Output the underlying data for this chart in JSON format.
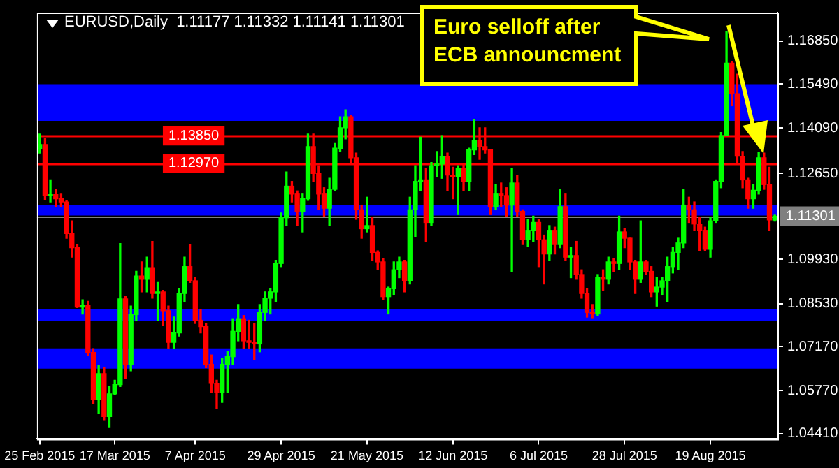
{
  "chart_data": {
    "type": "candlestick",
    "title": "EURUSD,Daily  1.11177 1.11332 1.11141 1.11301",
    "annotations": [
      "Euro selloff after ECB announcment"
    ],
    "categories": [
      "25 Feb 2015",
      null,
      null,
      null,
      null,
      null,
      null,
      null,
      null,
      null,
      null,
      null,
      null,
      null,
      "17 Mar 2015",
      null,
      null,
      null,
      null,
      null,
      null,
      null,
      null,
      null,
      null,
      null,
      null,
      null,
      null,
      "7 Apr 2015",
      null,
      null,
      null,
      null,
      null,
      null,
      null,
      null,
      null,
      null,
      null,
      null,
      null,
      null,
      null,
      "29 Apr 2015",
      null,
      null,
      null,
      null,
      null,
      null,
      null,
      null,
      null,
      null,
      null,
      null,
      null,
      null,
      null,
      "21 May 2015",
      null,
      null,
      null,
      null,
      null,
      null,
      null,
      null,
      null,
      null,
      null,
      null,
      null,
      null,
      null,
      "12 Jun 2015",
      null,
      null,
      null,
      null,
      null,
      null,
      null,
      null,
      null,
      null,
      null,
      null,
      null,
      null,
      null,
      "6 Jul 2015",
      null,
      null,
      null,
      null,
      null,
      null,
      null,
      null,
      null,
      null,
      null,
      null,
      null,
      null,
      null,
      "28 Jul 2015",
      null,
      null,
      null,
      null,
      null,
      null,
      null,
      null,
      null,
      null,
      null,
      null,
      null,
      null,
      null,
      "19 Aug 2015",
      null,
      null,
      null,
      null,
      null,
      null,
      null,
      null,
      null,
      null,
      null,
      null
    ],
    "ohlc": [
      [
        1.1345,
        1.139,
        1.133,
        1.1357
      ],
      [
        1.1357,
        1.1376,
        1.1183,
        1.1195
      ],
      [
        1.1195,
        1.1245,
        1.1175,
        1.1198
      ],
      [
        1.1198,
        1.1215,
        1.116,
        1.1185
      ],
      [
        1.1185,
        1.12,
        1.116,
        1.1175
      ],
      [
        1.1175,
        1.118,
        1.106,
        1.1075
      ],
      [
        1.1075,
        1.1115,
        1.1,
        1.103
      ],
      [
        1.103,
        1.104,
        1.084,
        1.0842
      ],
      [
        1.0842,
        1.0865,
        1.082,
        1.0848
      ],
      [
        1.0848,
        1.086,
        1.069,
        1.0698
      ],
      [
        1.0698,
        1.071,
        1.0535,
        1.0548
      ],
      [
        1.0548,
        1.0658,
        1.0505,
        1.0631
      ],
      [
        1.0631,
        1.065,
        1.0485,
        1.0495
      ],
      [
        1.0495,
        1.059,
        1.046,
        1.0567
      ],
      [
        1.0567,
        1.061,
        1.0565,
        1.0596
      ],
      [
        1.0596,
        1.1043,
        1.059,
        1.0868
      ],
      [
        1.0868,
        1.0875,
        1.0615,
        1.066
      ],
      [
        1.066,
        1.0845,
        1.064,
        1.0818
      ],
      [
        1.0818,
        1.0955,
        1.08,
        1.094
      ],
      [
        1.094,
        1.0985,
        1.089,
        1.093
      ],
      [
        1.093,
        1.1,
        1.089,
        1.0967
      ],
      [
        1.0967,
        1.105,
        1.087,
        1.0885
      ],
      [
        1.0885,
        1.092,
        1.08,
        1.089
      ],
      [
        1.089,
        1.0895,
        1.0785,
        1.083
      ],
      [
        1.083,
        1.0845,
        1.071,
        1.073
      ],
      [
        1.073,
        1.081,
        1.071,
        1.076
      ],
      [
        1.076,
        1.09,
        1.075,
        1.0885
      ],
      [
        1.0885,
        1.1,
        1.086,
        1.097
      ],
      [
        1.097,
        1.104,
        1.092,
        1.0925
      ],
      [
        1.0925,
        1.0935,
        1.079,
        1.08
      ],
      [
        1.08,
        1.0835,
        1.076,
        1.078
      ],
      [
        1.078,
        1.079,
        1.065,
        1.066
      ],
      [
        1.066,
        1.069,
        1.057,
        1.06
      ],
      [
        1.06,
        1.061,
        1.052,
        1.057
      ],
      [
        1.057,
        1.068,
        1.054,
        1.066
      ],
      [
        1.066,
        1.07,
        1.057,
        1.0685
      ],
      [
        1.0685,
        1.0805,
        1.066,
        1.0765
      ],
      [
        1.0765,
        1.085,
        1.0735,
        1.0805
      ],
      [
        1.0805,
        1.0815,
        1.071,
        1.0735
      ],
      [
        1.0735,
        1.08,
        1.071,
        1.073
      ],
      [
        1.073,
        1.079,
        1.0675,
        1.0725
      ],
      [
        1.0725,
        1.085,
        1.07,
        1.0825
      ],
      [
        1.0825,
        1.089,
        1.08,
        1.087
      ],
      [
        1.087,
        1.09,
        1.082,
        1.089
      ],
      [
        1.089,
        1.099,
        1.086,
        1.098
      ],
      [
        1.098,
        1.114,
        1.097,
        1.1125
      ],
      [
        1.1125,
        1.127,
        1.11,
        1.1225
      ],
      [
        1.1225,
        1.124,
        1.1175,
        1.12
      ],
      [
        1.12,
        1.121,
        1.11,
        1.1145
      ],
      [
        1.1145,
        1.12,
        1.108,
        1.1185
      ],
      [
        1.1185,
        1.139,
        1.118,
        1.135
      ],
      [
        1.135,
        1.139,
        1.124,
        1.1265
      ],
      [
        1.1265,
        1.129,
        1.115,
        1.12
      ],
      [
        1.12,
        1.122,
        1.113,
        1.1155
      ],
      [
        1.1155,
        1.125,
        1.11,
        1.1215
      ],
      [
        1.1215,
        1.136,
        1.121,
        1.1345
      ],
      [
        1.1345,
        1.1445,
        1.1335,
        1.141
      ],
      [
        1.141,
        1.1467,
        1.1375,
        1.1445
      ],
      [
        1.1445,
        1.145,
        1.13,
        1.1315
      ],
      [
        1.1315,
        1.133,
        1.112,
        1.115
      ],
      [
        1.115,
        1.1165,
        1.106,
        1.109
      ],
      [
        1.109,
        1.119,
        1.108,
        1.11
      ],
      [
        1.11,
        1.1125,
        1.099,
        1.1015
      ],
      [
        1.1015,
        1.102,
        1.096,
        1.0985
      ],
      [
        1.0985,
        1.0995,
        1.0865,
        1.0875
      ],
      [
        1.0875,
        1.0905,
        1.082,
        1.09
      ],
      [
        1.09,
        1.0985,
        1.088,
        1.096
      ],
      [
        1.096,
        1.1,
        1.0935,
        1.0985
      ],
      [
        1.0985,
        1.099,
        1.089,
        1.0925
      ],
      [
        1.0925,
        1.119,
        1.0915,
        1.115
      ],
      [
        1.115,
        1.129,
        1.1065,
        1.124
      ],
      [
        1.124,
        1.138,
        1.121,
        1.1245
      ],
      [
        1.1245,
        1.128,
        1.105,
        1.111
      ],
      [
        1.111,
        1.13,
        1.11,
        1.129
      ],
      [
        1.129,
        1.1335,
        1.1255,
        1.1295
      ],
      [
        1.1295,
        1.1385,
        1.125,
        1.132
      ],
      [
        1.132,
        1.133,
        1.121,
        1.126
      ],
      [
        1.126,
        1.1285,
        1.1185,
        1.1255
      ],
      [
        1.1255,
        1.129,
        1.1135,
        1.128
      ],
      [
        1.128,
        1.1295,
        1.121,
        1.124
      ],
      [
        1.124,
        1.1345,
        1.121,
        1.134
      ],
      [
        1.134,
        1.1435,
        1.1325,
        1.137
      ],
      [
        1.137,
        1.141,
        1.131,
        1.135
      ],
      [
        1.135,
        1.141,
        1.133,
        1.134
      ],
      [
        1.134,
        1.134,
        1.1135,
        1.116
      ],
      [
        1.116,
        1.123,
        1.115,
        1.12
      ],
      [
        1.12,
        1.1235,
        1.116,
        1.1195
      ],
      [
        1.1195,
        1.122,
        1.113,
        1.1165
      ],
      [
        1.1165,
        1.128,
        1.0955,
        1.1235
      ],
      [
        1.1235,
        1.126,
        1.113,
        1.1145
      ],
      [
        1.1145,
        1.115,
        1.104,
        1.1055
      ],
      [
        1.1055,
        1.112,
        1.1035,
        1.1085
      ],
      [
        1.1085,
        1.113,
        1.105,
        1.111
      ],
      [
        1.111,
        1.112,
        1.097,
        1.1055
      ],
      [
        1.1055,
        1.107,
        1.0915,
        1.101
      ],
      [
        1.101,
        1.11,
        1.099,
        1.1085
      ],
      [
        1.1085,
        1.1095,
        1.101,
        1.104
      ],
      [
        1.104,
        1.1215,
        1.103,
        1.116
      ],
      [
        1.116,
        1.12,
        1.099,
        1.1
      ],
      [
        1.1,
        1.103,
        1.0935,
        1.1005
      ],
      [
        1.1005,
        1.105,
        1.093,
        1.0945
      ],
      [
        1.0945,
        1.096,
        1.087,
        1.0885
      ],
      [
        1.0885,
        1.09,
        1.081,
        1.0825
      ],
      [
        1.0825,
        1.085,
        1.0808,
        1.082
      ],
      [
        1.082,
        1.0945,
        1.0815,
        1.0935
      ],
      [
        1.0935,
        1.096,
        1.0895,
        1.093
      ],
      [
        1.093,
        1.1,
        1.0915,
        1.0985
      ],
      [
        1.0985,
        1.0995,
        1.0955,
        1.098
      ],
      [
        1.098,
        1.113,
        1.096,
        1.108
      ],
      [
        1.108,
        1.109,
        1.103,
        1.106
      ],
      [
        1.106,
        1.106,
        1.096,
        1.0985
      ],
      [
        1.0985,
        1.099,
        1.0885,
        1.093
      ],
      [
        1.093,
        1.1115,
        1.092,
        1.0985
      ],
      [
        1.0985,
        1.099,
        1.0945,
        1.0955
      ],
      [
        1.0955,
        1.097,
        1.0875,
        1.089
      ],
      [
        1.089,
        1.0935,
        1.0845,
        1.0905
      ],
      [
        1.0905,
        1.0935,
        1.088,
        1.0925
      ],
      [
        1.0925,
        1.1,
        1.086,
        1.097
      ],
      [
        1.097,
        1.103,
        1.095,
        1.1015
      ],
      [
        1.1015,
        1.106,
        1.096,
        1.1045
      ],
      [
        1.1045,
        1.1215,
        1.103,
        1.1165
      ],
      [
        1.1165,
        1.119,
        1.111,
        1.115
      ],
      [
        1.115,
        1.1175,
        1.1085,
        1.1105
      ],
      [
        1.1105,
        1.1125,
        1.102,
        1.1085
      ],
      [
        1.1085,
        1.1095,
        1.102,
        1.1025
      ],
      [
        1.1025,
        1.1125,
        1.1,
        1.1115
      ],
      [
        1.1115,
        1.1245,
        1.111,
        1.124
      ],
      [
        1.124,
        1.1395,
        1.122,
        1.1385
      ],
      [
        1.1385,
        1.1714,
        1.1385,
        1.1615
      ],
      [
        1.1615,
        1.162,
        1.148,
        1.1518
      ],
      [
        1.1518,
        1.158,
        1.13,
        1.132
      ],
      [
        1.132,
        1.1335,
        1.122,
        1.1245
      ],
      [
        1.1245,
        1.125,
        1.1155,
        1.1185
      ],
      [
        1.1185,
        1.123,
        1.1155,
        1.1212
      ],
      [
        1.1212,
        1.1332,
        1.12,
        1.1315
      ],
      [
        1.1315,
        1.133,
        1.1215,
        1.123
      ],
      [
        1.123,
        1.1285,
        1.1085,
        1.1118
      ],
      [
        1.11177,
        1.11332,
        1.11141,
        1.11301
      ]
    ],
    "colors": [
      "#00ff00",
      "#ff0000",
      "#00ff00",
      "#ff0000",
      "#ff0000",
      "#ff0000",
      "#ff0000",
      "#ff0000",
      "#00ff00",
      "#ff0000",
      "#ff0000",
      "#00ff00",
      "#ff0000",
      "#00ff00",
      "#00ff00",
      "#00ff00",
      "#ff0000",
      "#00ff00",
      "#00ff00",
      "#ff0000",
      "#00ff00",
      "#ff0000",
      "#00ff00",
      "#ff0000",
      "#ff0000",
      "#00ff00",
      "#00ff00",
      "#00ff00",
      "#ff0000",
      "#ff0000",
      "#ff0000",
      "#ff0000",
      "#ff0000",
      "#ff0000",
      "#00ff00",
      "#00ff00",
      "#00ff00",
      "#00ff00",
      "#ff0000",
      "#ff0000",
      "#ff0000",
      "#00ff00",
      "#00ff00",
      "#00ff00",
      "#00ff00",
      "#00ff00",
      "#00ff00",
      "#ff0000",
      "#ff0000",
      "#00ff00",
      "#00ff00",
      "#ff0000",
      "#ff0000",
      "#ff0000",
      "#00ff00",
      "#00ff00",
      "#00ff00",
      "#00ff00",
      "#ff0000",
      "#ff0000",
      "#ff0000",
      "#00ff00",
      "#ff0000",
      "#ff0000",
      "#ff0000",
      "#00ff00",
      "#00ff00",
      "#00ff00",
      "#ff0000",
      "#00ff00",
      "#00ff00",
      "#00ff00",
      "#ff0000",
      "#00ff00",
      "#00ff00",
      "#00ff00",
      "#ff0000",
      "#ff0000",
      "#00ff00",
      "#ff0000",
      "#00ff00",
      "#00ff00",
      "#ff0000",
      "#ff0000",
      "#ff0000",
      "#00ff00",
      "#ff0000",
      "#ff0000",
      "#00ff00",
      "#ff0000",
      "#ff0000",
      "#00ff00",
      "#00ff00",
      "#ff0000",
      "#ff0000",
      "#00ff00",
      "#ff0000",
      "#00ff00",
      "#ff0000",
      "#00ff00",
      "#ff0000",
      "#ff0000",
      "#ff0000",
      "#ff0000",
      "#00ff00",
      "#ff0000",
      "#00ff00",
      "#ff0000",
      "#00ff00",
      "#ff0000",
      "#ff0000",
      "#ff0000",
      "#00ff00",
      "#ff0000",
      "#ff0000",
      "#00ff00",
      "#00ff00",
      "#00ff00",
      "#00ff00",
      "#00ff00",
      "#00ff00",
      "#ff0000",
      "#ff0000",
      "#ff0000",
      "#ff0000",
      "#00ff00",
      "#00ff00",
      "#00ff00",
      "#00ff00",
      "#ff0000",
      "#ff0000",
      "#ff0000",
      "#ff0000",
      "#00ff00",
      "#00ff00",
      "#ff0000",
      "#ff0000",
      "#00ff00"
    ],
    "ylim": [
      1.0424,
      1.1775
    ],
    "yticks": [
      {
        "value": 1.0441,
        "label": "1.04410"
      },
      {
        "value": 1.0577,
        "label": "1.05770"
      },
      {
        "value": 1.0717,
        "label": "1.07170"
      },
      {
        "value": 1.0853,
        "label": "1.08530"
      },
      {
        "value": 1.0993,
        "label": "1.09930"
      },
      {
        "value": 1.1265,
        "label": "1.12650"
      },
      {
        "value": 1.1409,
        "label": "1.14090"
      },
      {
        "value": 1.1549,
        "label": "1.15490"
      },
      {
        "value": 1.1685,
        "label": "1.16850"
      }
    ],
    "ref_lines": [
      {
        "axis": "y",
        "value": 1.1385,
        "label": "1.13850",
        "color": "#ff0000"
      },
      {
        "axis": "y",
        "value": 1.1297,
        "label": "1.12970",
        "color": "#ff0000"
      },
      {
        "axis": "y",
        "value": 1.11301,
        "label": "1.11301",
        "color": "#808080"
      }
    ],
    "bands": [
      {
        "axis": "y",
        "from": 1.1432,
        "to": 1.1548,
        "color": "#0000ff"
      },
      {
        "axis": "y",
        "from": 1.1132,
        "to": 1.1166,
        "color": "#0000ff"
      },
      {
        "axis": "y",
        "from": 1.0799,
        "to": 1.0836,
        "color": "#0000ff"
      },
      {
        "axis": "y",
        "from": 1.0647,
        "to": 1.0711,
        "color": "#0000ff"
      }
    ]
  }
}
